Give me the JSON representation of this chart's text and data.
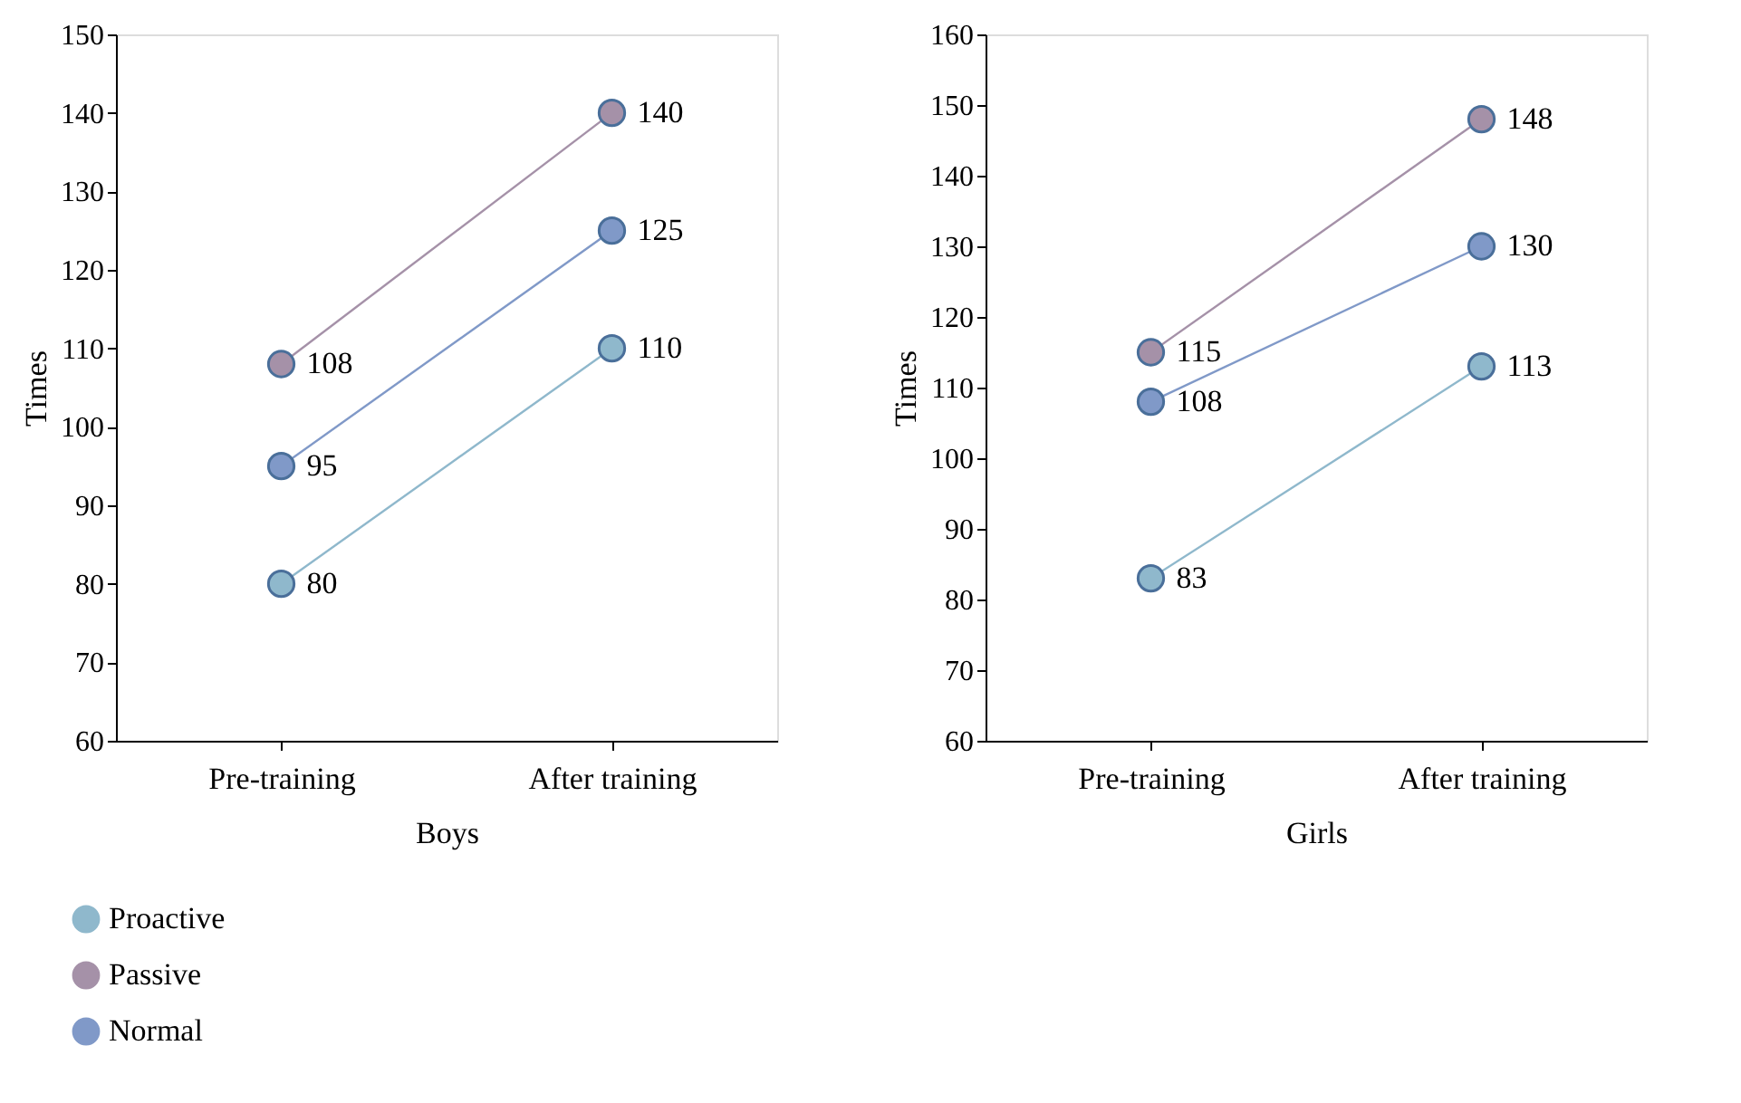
{
  "chart_data": [
    {
      "type": "line",
      "categories": [
        "Pre-training",
        "After training"
      ],
      "xlabel": "Boys",
      "ylabel": "Times",
      "ylim": [
        60,
        150
      ],
      "yticks": [
        60,
        70,
        80,
        90,
        100,
        110,
        120,
        130,
        140,
        150
      ],
      "grid": false,
      "legend": "bottom left",
      "marker": "circle",
      "line_style": "solid",
      "data_labels": true,
      "series": [
        {
          "name": "Proactive",
          "color": "#8fb8cc",
          "values": [
            80,
            110
          ]
        },
        {
          "name": "Passive",
          "color": "#a591a8",
          "values": [
            108,
            140
          ]
        },
        {
          "name": "Normal",
          "color": "#8099c8",
          "values": [
            95,
            125
          ]
        }
      ]
    },
    {
      "type": "line",
      "categories": [
        "Pre-training",
        "After training"
      ],
      "xlabel": "Girls",
      "ylabel": "Times",
      "ylim": [
        60,
        160
      ],
      "yticks": [
        60,
        70,
        80,
        90,
        100,
        110,
        120,
        130,
        140,
        150,
        160
      ],
      "grid": false,
      "legend": "bottom left",
      "marker": "circle",
      "line_style": "solid",
      "data_labels": true,
      "series": [
        {
          "name": "Proactive",
          "color": "#8fb8cc",
          "values": [
            83,
            113
          ]
        },
        {
          "name": "Passive",
          "color": "#a591a8",
          "values": [
            115,
            148
          ]
        },
        {
          "name": "Normal",
          "color": "#8099c8",
          "values": [
            108,
            130
          ]
        }
      ]
    }
  ]
}
